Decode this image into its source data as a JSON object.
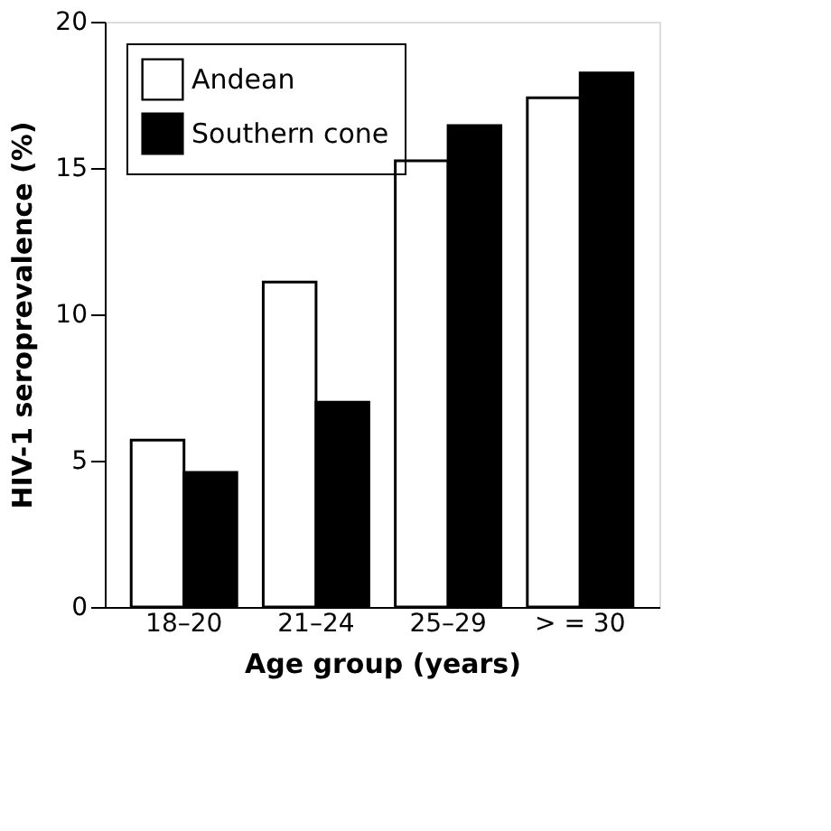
{
  "chart_data": {
    "type": "bar",
    "xlabel": "Age group (years)",
    "ylabel": "HIV-1 seroprevalence (%)",
    "categories": [
      "18–20",
      "21–24",
      "25–29",
      "> = 30"
    ],
    "series": [
      {
        "name": "Andean",
        "color": "#ffffff",
        "values": [
          5.7,
          11.1,
          15.25,
          17.4
        ]
      },
      {
        "name": "Southern cone",
        "color": "#000000",
        "values": [
          4.6,
          7.0,
          16.45,
          18.25
        ]
      }
    ],
    "ylim": [
      0,
      20
    ],
    "yticks": [
      0,
      5,
      10,
      15,
      20
    ],
    "grid": false,
    "legend": "top left"
  }
}
